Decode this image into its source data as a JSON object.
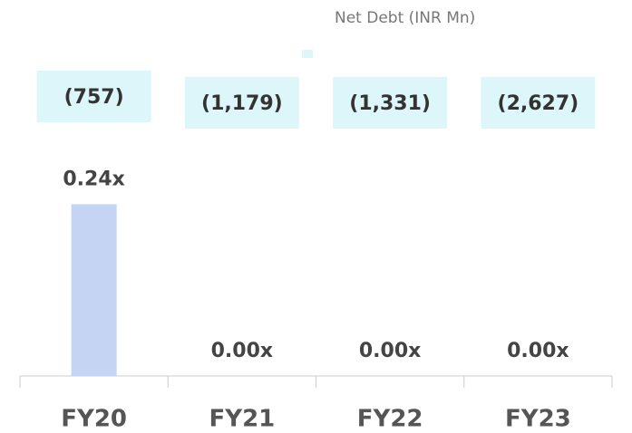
{
  "chart_data": {
    "type": "bar",
    "categories": [
      "FY20",
      "FY21",
      "FY22",
      "FY23"
    ],
    "values": [
      0.24,
      0,
      0,
      0
    ],
    "value_labels": [
      "0.24x",
      "0.00x",
      "0.00x",
      "0.00x"
    ],
    "color": "#c5d4f2",
    "ylim": [
      0,
      0.3
    ],
    "net_debt": {
      "name": "Net Debt (INR Mn)",
      "color": "#ddf6fa",
      "values": [
        -757,
        -1179,
        -1331,
        -2627
      ],
      "value_labels": [
        "(757)",
        "(1,179)",
        "(1,331)",
        "(2,627)"
      ]
    }
  }
}
